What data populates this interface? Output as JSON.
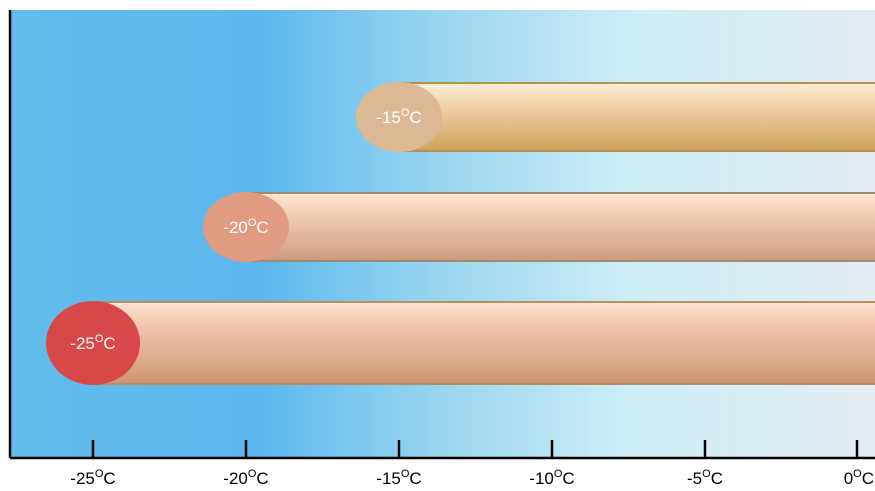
{
  "chart_data": {
    "type": "bar",
    "orientation": "horizontal",
    "title": "",
    "xlabel": "",
    "ylabel": "",
    "x_ticks": [
      {
        "value": -25,
        "label": "-25",
        "unit": "C"
      },
      {
        "value": -20,
        "label": "-20",
        "unit": "C"
      },
      {
        "value": -15,
        "label": "-15",
        "unit": "C"
      },
      {
        "value": -10,
        "label": "-10",
        "unit": "C"
      },
      {
        "value": -5,
        "label": "-5",
        "unit": "C"
      },
      {
        "value": 0,
        "label": "0",
        "unit": "C"
      }
    ],
    "xlim": [
      -27.7,
      0.5
    ],
    "degree_symbol": "O",
    "bars": [
      {
        "value": -15,
        "label": "-15",
        "unit": "C",
        "cap_color": "#dcb894",
        "tube_colors": [
          "#fdf0dc",
          "#f1d5aa",
          "#dcb376",
          "#cca058"
        ],
        "edge_color": "#b59055"
      },
      {
        "value": -20,
        "label": "-20",
        "unit": "C",
        "cap_color": "#e19b80",
        "tube_colors": [
          "#fde8d6",
          "#f2cfb5",
          "#dcae92",
          "#c9987a"
        ],
        "edge_color": "#a08a70"
      },
      {
        "value": -25,
        "label": "-25",
        "unit": "C",
        "cap_color": "#d84848",
        "tube_colors": [
          "#fde4d2",
          "#f3c4ac",
          "#dba888",
          "#cb9270"
        ],
        "edge_color": "#b69060"
      }
    ],
    "background_gradient": [
      "#62bcec",
      "#5cb8ee",
      "#9ad6f0",
      "#cdeef6",
      "#e4ecf2"
    ],
    "axis_color": "#000000"
  }
}
